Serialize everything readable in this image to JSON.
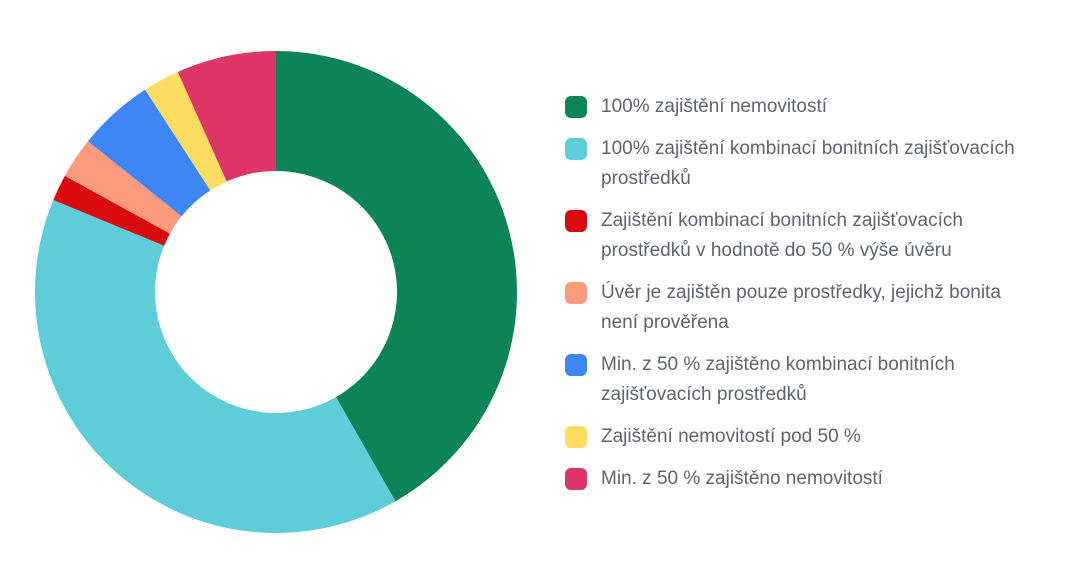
{
  "chart_data": {
    "type": "pie",
    "variant": "donut",
    "title": "",
    "categories": [
      "100% zajištění nemovitostí",
      "100% zajištění kombinací bonitních zajišťovacích prostředků",
      "Zajištění kombinací bonitních zajišťovacích prostředků v hodnotě do 50 % výše úvěru",
      "Úvěr je zajištěn pouze prostředky, jejichž bonita není prověřena",
      "Min. z 50 % zajištěno kombinací bonitních zajišťovacích prostředků",
      "Zajištění nemovitostí pod 50 %",
      "Min. z 50 % zajištěno nemovitostí"
    ],
    "values": [
      42.5,
      40.2,
      1.8,
      2.8,
      5.2,
      2.5,
      6.8
    ],
    "colors": [
      "#0c8458",
      "#5ecdd9",
      "#d90b0f",
      "#fc9a7e",
      "#3f86f5",
      "#fcdd62",
      "#dc3566"
    ],
    "legend_position": "right",
    "start_angle_deg": 0,
    "direction": "clockwise"
  }
}
